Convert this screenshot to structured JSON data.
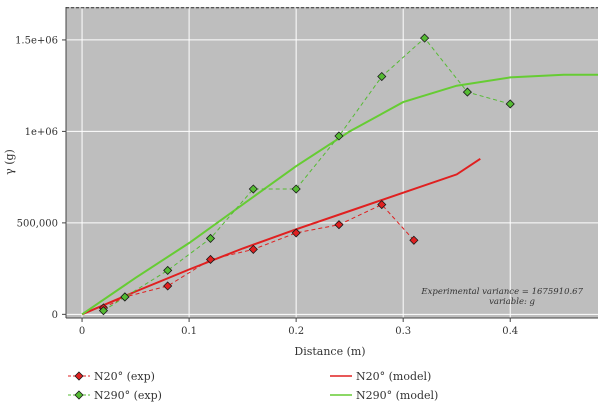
{
  "chart_data": {
    "type": "scatter",
    "xlabel": "Distance (m)",
    "ylabel": "γ (g)",
    "x_ticks": [
      0,
      0.1,
      0.2,
      0.3,
      0.4
    ],
    "y_ticks": [
      0,
      500000,
      1000000,
      1500000
    ],
    "y_tick_labels": [
      "0",
      "500,000",
      "1e+06",
      "1.5e+06"
    ],
    "xlim": [
      -0.015,
      0.482
    ],
    "ylim": [
      -20000,
      1680000
    ],
    "grid": true,
    "legend_position": "bottom",
    "sill": 1675910.67,
    "annotation": {
      "line1": "Experimental variance = 1675910.67",
      "line2": "variable: g"
    },
    "series": [
      {
        "name": "N20° (exp)",
        "kind": "experimental",
        "color": "#e02020",
        "x": [
          0.02,
          0.04,
          0.08,
          0.12,
          0.16,
          0.2,
          0.24,
          0.28,
          0.31
        ],
        "y": [
          35000,
          95000,
          155000,
          300000,
          355000,
          445000,
          490000,
          600000,
          405000
        ]
      },
      {
        "name": "N290° (exp)",
        "kind": "experimental",
        "color": "#55bb33",
        "x": [
          0.02,
          0.04,
          0.08,
          0.12,
          0.16,
          0.2,
          0.24,
          0.28,
          0.32,
          0.36,
          0.4
        ],
        "y": [
          20000,
          95000,
          240000,
          415000,
          685000,
          685000,
          975000,
          1300000,
          1510000,
          1215000,
          1150000
        ]
      },
      {
        "name": "N20° (model)",
        "kind": "model",
        "color": "#e02020",
        "x": [
          0,
          0.05,
          0.1,
          0.15,
          0.2,
          0.25,
          0.3,
          0.35,
          0.372
        ],
        "y": [
          0,
          125000,
          245000,
          360000,
          465000,
          565000,
          665000,
          765000,
          850000
        ]
      },
      {
        "name": "N290° (model)",
        "kind": "model",
        "color": "#66cc33",
        "x": [
          0,
          0.05,
          0.1,
          0.15,
          0.2,
          0.25,
          0.3,
          0.35,
          0.4,
          0.45,
          0.482
        ],
        "y": [
          0,
          200000,
          390000,
          600000,
          810000,
          1000000,
          1160000,
          1250000,
          1295000,
          1310000,
          1310000
        ]
      }
    ]
  }
}
